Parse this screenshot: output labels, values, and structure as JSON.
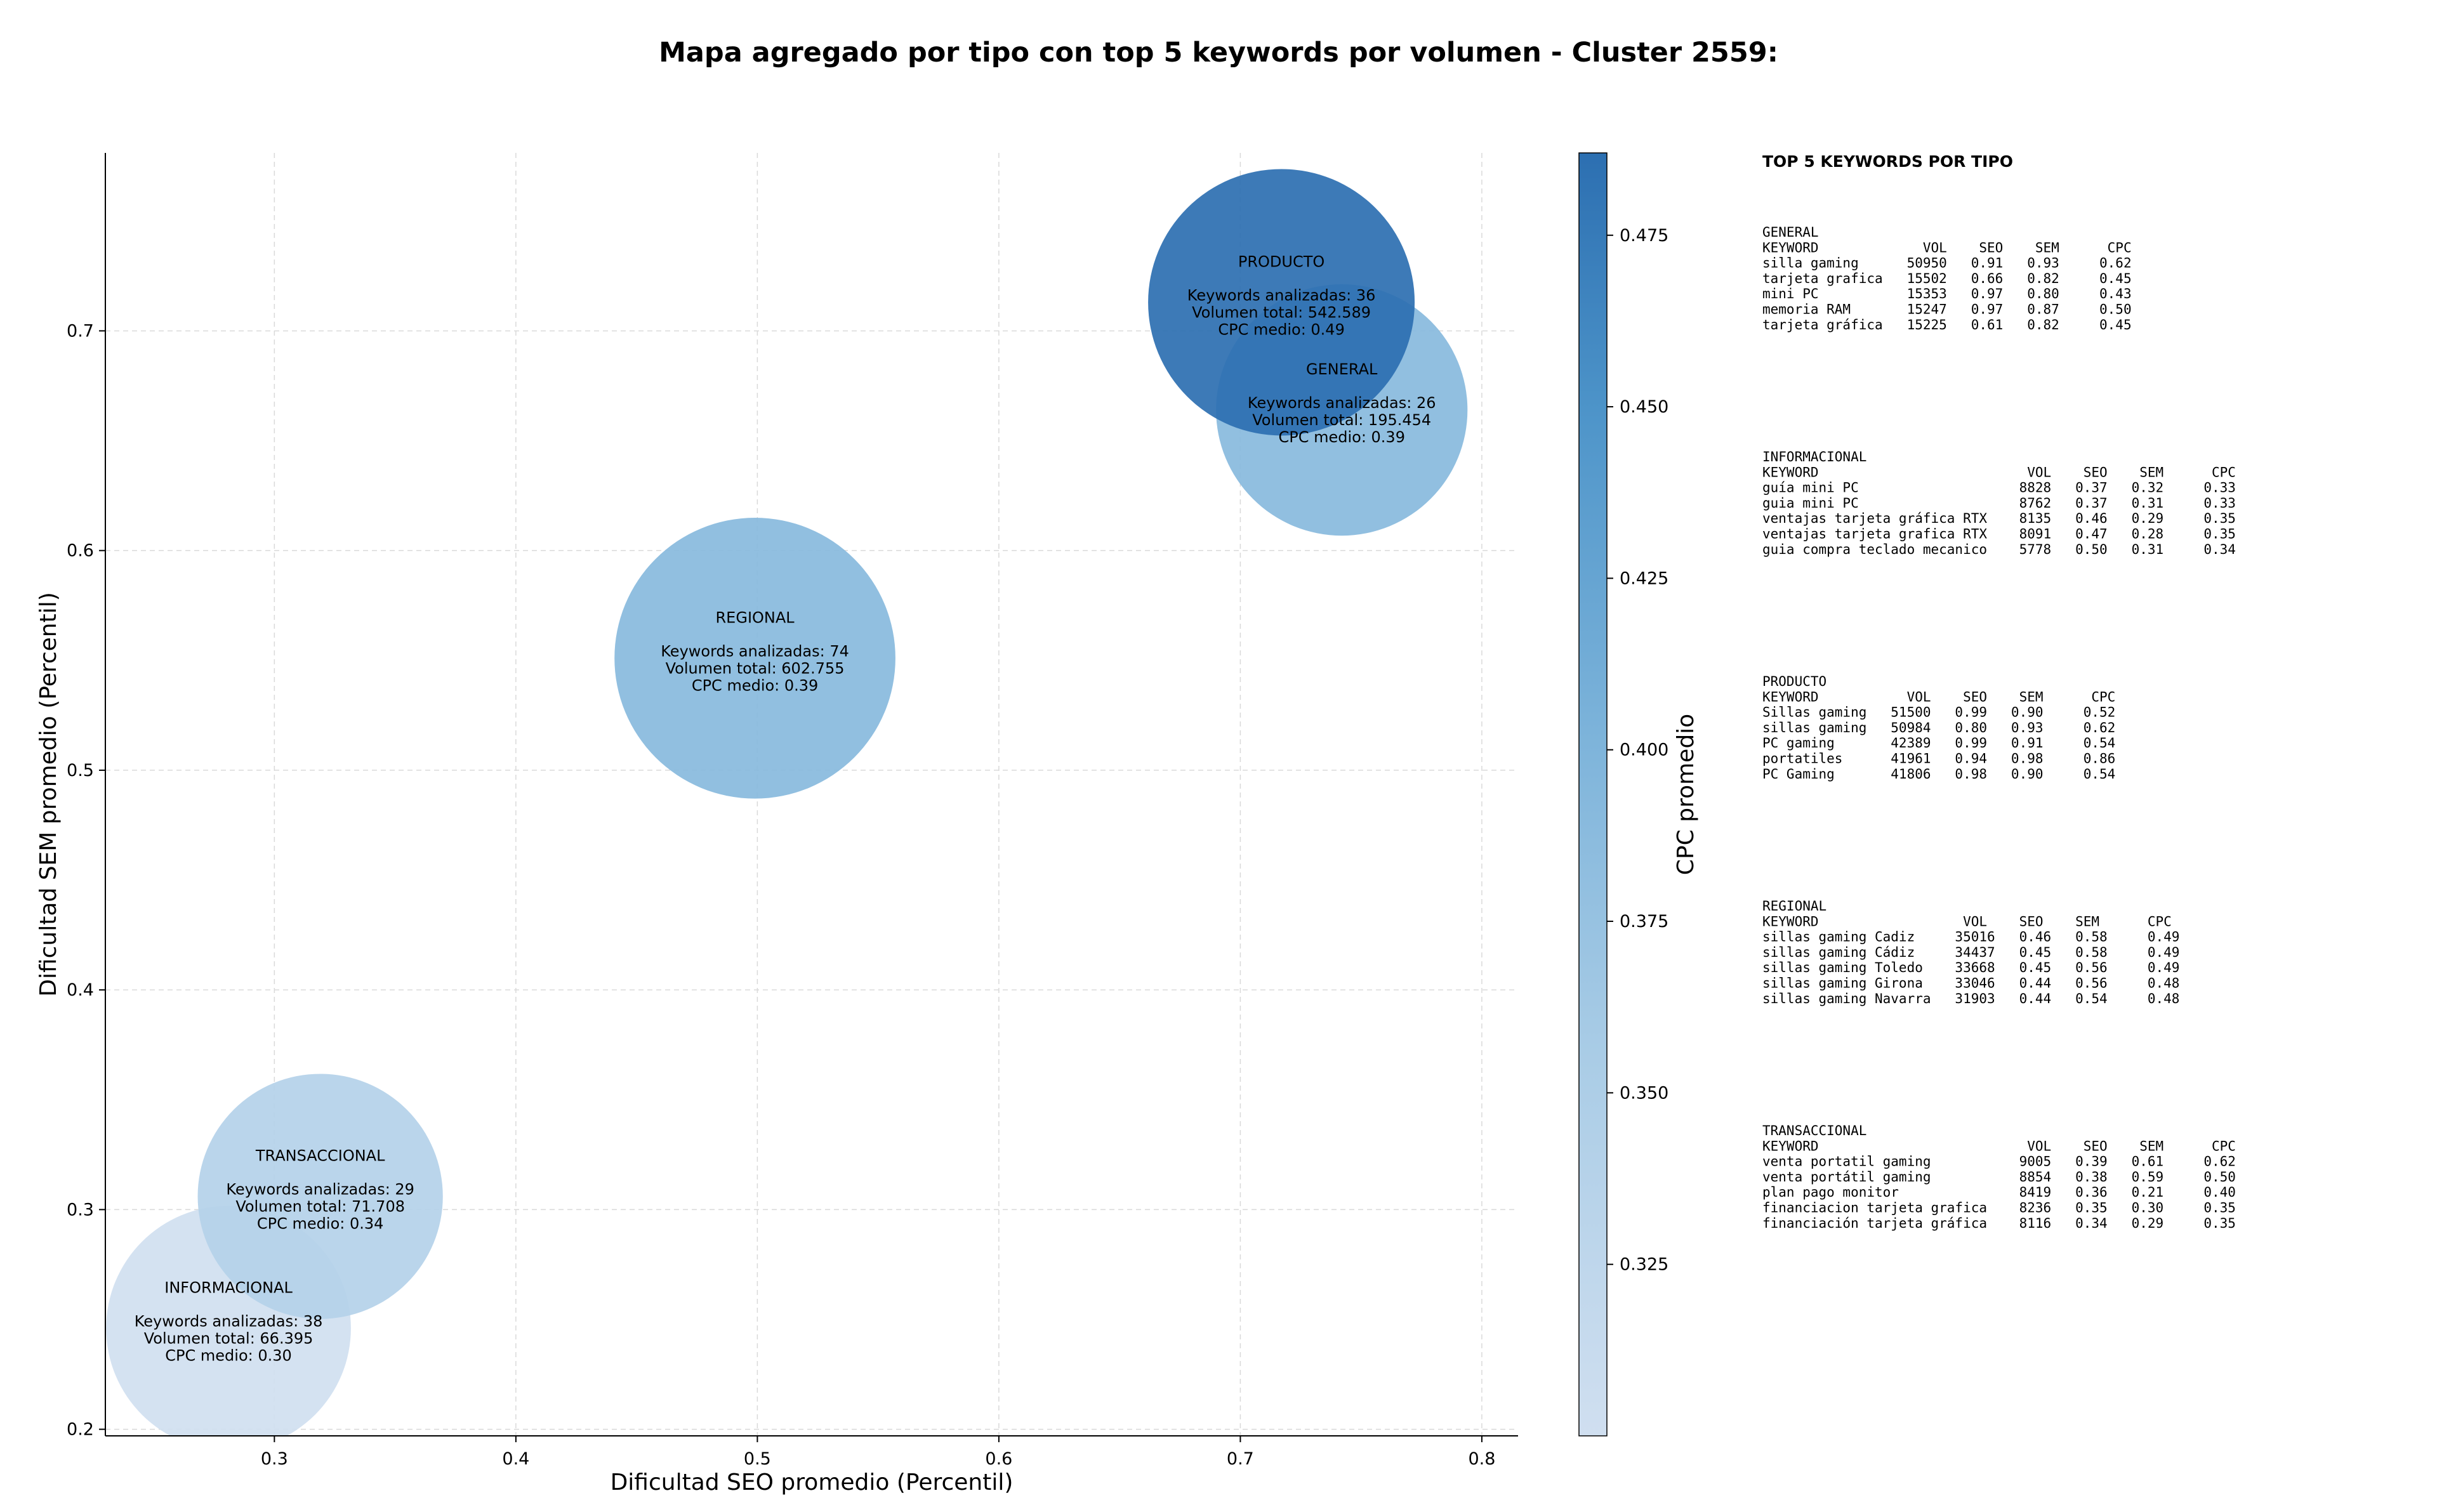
{
  "chart_data": {
    "type": "scatter",
    "title": "Mapa agregado por tipo con top 5 keywords por volumen - Cluster 2559:",
    "xlabel": "Dificultad SEO promedio (Percentil)",
    "ylabel": "Dificultad SEM promedio (Percentil)",
    "xlim": [
      0.23,
      0.815
    ],
    "ylim": [
      0.197,
      0.781
    ],
    "xticks": [
      "0.3",
      "0.4",
      "0.5",
      "0.6",
      "0.7",
      "0.8"
    ],
    "yticks": [
      "0.2",
      "0.3",
      "0.4",
      "0.5",
      "0.6",
      "0.7"
    ],
    "grid": true,
    "colorbar": {
      "label": "CPC promedio",
      "min": 0.3,
      "max": 0.487,
      "ticks": [
        "0.325",
        "0.350",
        "0.375",
        "0.400",
        "0.425",
        "0.450",
        "0.475"
      ],
      "color_low": "#d0dff0",
      "color_high": "#2c6fb1"
    },
    "points": [
      {
        "tipo": "PRODUCTO",
        "x": 0.717,
        "y": 0.713,
        "keywords_line": "Keywords analizadas: 36",
        "volumen_line": "Volumen total: 542.589",
        "cpc_line": "CPC medio: 0.49",
        "volumen": 542589,
        "cpc": 0.49
      },
      {
        "tipo": "GENERAL",
        "x": 0.742,
        "y": 0.664,
        "keywords_line": "Keywords analizadas: 26",
        "volumen_line": "Volumen total: 195.454",
        "cpc_line": "CPC medio: 0.39",
        "volumen": 195454,
        "cpc": 0.39
      },
      {
        "tipo": "REGIONAL",
        "x": 0.499,
        "y": 0.551,
        "keywords_line": "Keywords analizadas: 74",
        "volumen_line": "Volumen total: 602.755",
        "cpc_line": "CPC medio: 0.39",
        "volumen": 602755,
        "cpc": 0.39
      },
      {
        "tipo": "TRANSACCIONAL",
        "x": 0.319,
        "y": 0.306,
        "keywords_line": "Keywords analizadas: 29",
        "volumen_line": "Volumen total: 71.708",
        "cpc_line": "CPC medio: 0.34",
        "volumen": 71708,
        "cpc": 0.34
      },
      {
        "tipo": "INFORMACIONAL",
        "x": 0.281,
        "y": 0.246,
        "keywords_line": "Keywords analizadas: 38",
        "volumen_line": "Volumen total: 66.395",
        "cpc_line": "CPC medio: 0.30",
        "volumen": 66395,
        "cpc": 0.3
      }
    ]
  },
  "tables": {
    "heading": "TOP 5 KEYWORDS POR TIPO",
    "sections": [
      {
        "lines": [
          "GENERAL",
          "KEYWORD             VOL    SEO    SEM      CPC",
          "silla gaming      50950   0.91   0.93     0.62",
          "tarjeta grafica   15502   0.66   0.82     0.45",
          "mini PC           15353   0.97   0.80     0.43",
          "memoria RAM       15247   0.97   0.87     0.50",
          "tarjeta gráfica   15225   0.61   0.82     0.45"
        ]
      },
      {
        "lines": [
          "INFORMACIONAL",
          "KEYWORD                          VOL    SEO    SEM      CPC",
          "guía mini PC                    8828   0.37   0.32     0.33",
          "guia mini PC                    8762   0.37   0.31     0.33",
          "ventajas tarjeta gráfica RTX    8135   0.46   0.29     0.35",
          "ventajas tarjeta grafica RTX    8091   0.47   0.28     0.35",
          "guia compra teclado mecanico    5778   0.50   0.31     0.34"
        ]
      },
      {
        "lines": [
          "PRODUCTO",
          "KEYWORD           VOL    SEO    SEM      CPC",
          "Sillas gaming   51500   0.99   0.90     0.52",
          "sillas gaming   50984   0.80   0.93     0.62",
          "PC gaming       42389   0.99   0.91     0.54",
          "portatiles      41961   0.94   0.98     0.86",
          "PC Gaming       41806   0.98   0.90     0.54"
        ]
      },
      {
        "lines": [
          "REGIONAL",
          "KEYWORD                  VOL    SEO    SEM      CPC",
          "sillas gaming Cadiz     35016   0.46   0.58     0.49",
          "sillas gaming Cádiz     34437   0.45   0.58     0.49",
          "sillas gaming Toledo    33668   0.45   0.56     0.49",
          "sillas gaming Girona    33046   0.44   0.56     0.48",
          "sillas gaming Navarra   31903   0.44   0.54     0.48"
        ]
      },
      {
        "lines": [
          "TRANSACCIONAL",
          "KEYWORD                          VOL    SEO    SEM      CPC",
          "venta portatil gaming           9005   0.39   0.61     0.62",
          "venta portátil gaming           8854   0.38   0.59     0.50",
          "plan pago monitor               8419   0.36   0.21     0.40",
          "financiacion tarjeta grafica    8236   0.35   0.30     0.35",
          "financiación tarjeta gráfica    8116   0.34   0.29     0.35"
        ]
      }
    ]
  }
}
